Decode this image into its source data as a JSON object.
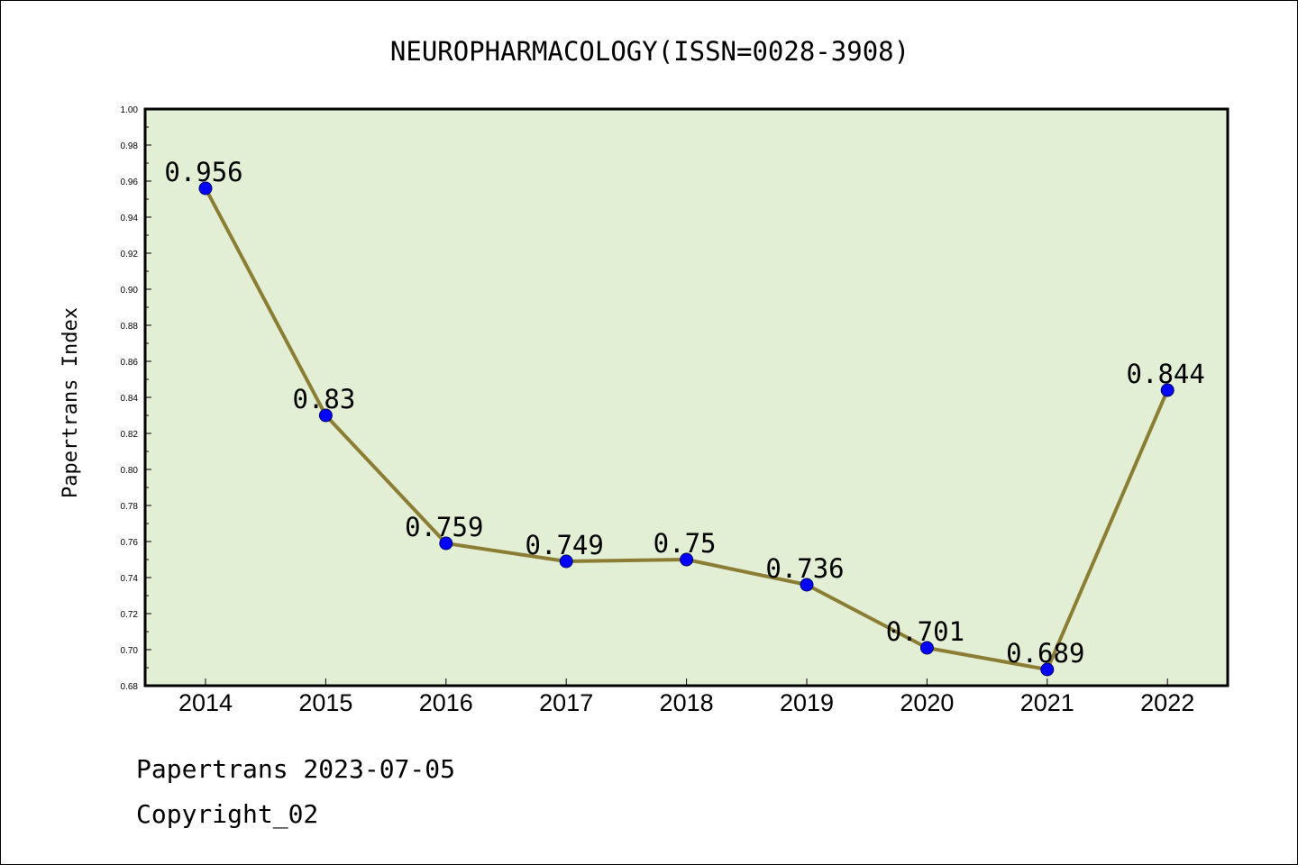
{
  "chart_data": {
    "type": "line",
    "title": "NEUROPHARMACOLOGY(ISSN=0028-3908)",
    "ylabel": "Papertrans Index",
    "xlabel": "",
    "categories": [
      "2014",
      "2015",
      "2016",
      "2017",
      "2018",
      "2019",
      "2020",
      "2021",
      "2022"
    ],
    "series": [
      {
        "values": [
          0.956,
          0.83,
          0.759,
          0.749,
          0.75,
          0.736,
          0.701,
          0.689,
          0.844
        ],
        "labels": [
          "0.956",
          "0.83",
          "0.759",
          "0.749",
          "0.75",
          "0.736",
          "0.701",
          "0.689",
          "0.844"
        ]
      }
    ],
    "ylim": [
      0.68,
      1.0
    ],
    "yticks": [
      "0.68",
      "0.70",
      "0.72",
      "0.74",
      "0.76",
      "0.78",
      "0.80",
      "0.82",
      "0.84",
      "0.86",
      "0.88",
      "0.90",
      "0.92",
      "0.94",
      "0.96",
      "0.98",
      "1.00"
    ],
    "grid": false,
    "colors": {
      "plot_background": "#e2efd5",
      "line": "#8b7d33",
      "marker": "#0000ff"
    }
  },
  "footer": {
    "line1": "Papertrans 2023-07-05",
    "line2": "Copyright_02"
  }
}
